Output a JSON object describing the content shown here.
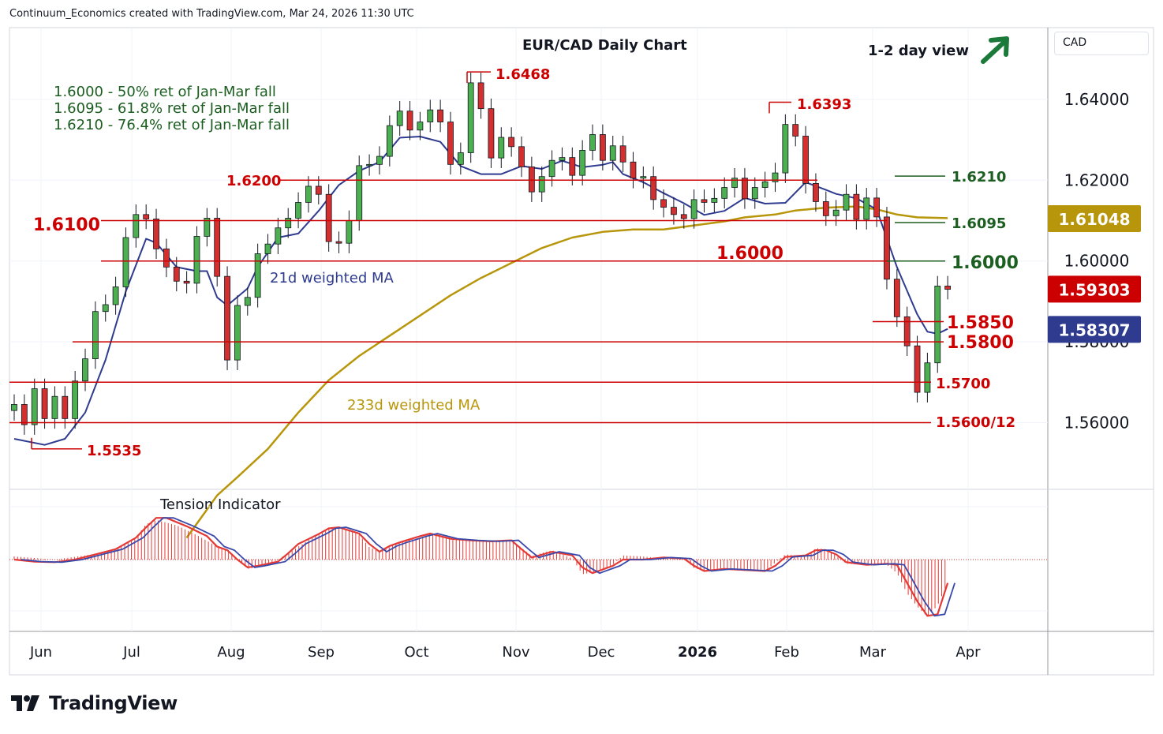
{
  "header": {
    "text": "Continuum_Economics created with TradingView.com, Mar 24, 2026 11:30 UTC"
  },
  "brand": {
    "name": "TradingView"
  },
  "view": {
    "label": "1-2 day view",
    "icon": "arrow-up-right-icon",
    "color": "#1b7a3a"
  },
  "currency": {
    "label": "CAD"
  },
  "chart_data": {
    "type": "candlestick",
    "title": "EUR/CAD Daily Chart",
    "x_tick_labels": [
      "Jun",
      "Jul",
      "Aug",
      "Sep",
      "Oct",
      "Nov",
      "Dec",
      "2026",
      "Feb",
      "Mar",
      "Apr"
    ],
    "y_tick_labels": [
      "1.64000",
      "1.62000",
      "1.60000",
      "1.58000",
      "1.56000"
    ],
    "ylim": [
      1.545,
      1.652
    ],
    "grid": true,
    "price_badges": [
      {
        "value": "1.61048",
        "color": "#b8960b"
      },
      {
        "value": "1.59303",
        "color": "#cc0000"
      },
      {
        "value": "1.58307",
        "color": "#2e3b8f"
      }
    ],
    "fib_notes": [
      "1.6000 - 50% ret of Jan-Mar fall",
      "1.6095 - 61.8% ret of Jan-Mar fall",
      "1.6210 - 76.4% ret of Jan-Mar fall"
    ],
    "levels": [
      {
        "label": "1.6100",
        "value": 1.61,
        "color": "#cc0000",
        "label_side": "left"
      },
      {
        "label": "1.6200",
        "value": 1.62,
        "color": "#cc0000",
        "label_side": "left"
      },
      {
        "label": "1.6000",
        "value": 1.6,
        "color": "#cc0000",
        "label_side": "mid"
      },
      {
        "label": "1.5850",
        "value": 1.585,
        "color": "#cc0000",
        "label_side": "right"
      },
      {
        "label": "1.5800",
        "value": 1.58,
        "color": "#cc0000",
        "label_side": "right"
      },
      {
        "label": "1.5700",
        "value": 1.57,
        "color": "#cc0000",
        "label_side": "right"
      },
      {
        "label": "1.5600/12",
        "value": 1.56,
        "color": "#cc0000",
        "label_side": "right"
      },
      {
        "label": "1.6468",
        "value": 1.6468,
        "color": "#cc0000",
        "label_side": "peak"
      },
      {
        "label": "1.6393",
        "value": 1.6393,
        "color": "#cc0000",
        "label_side": "peak"
      },
      {
        "label": "1.5535",
        "value": 1.5535,
        "color": "#cc0000",
        "label_side": "trough"
      },
      {
        "label": "1.6210",
        "value": 1.621,
        "color": "#1b5e20",
        "label_side": "right"
      },
      {
        "label": "1.6095",
        "value": 1.6095,
        "color": "#1b5e20",
        "label_side": "right"
      },
      {
        "label": "1.6000",
        "value": 1.6,
        "color": "#1b5e20",
        "label_side": "right"
      }
    ],
    "series": [
      {
        "name": "21d weighted MA",
        "color": "#2e3b8f"
      },
      {
        "name": "233d weighted MA",
        "color": "#b8960b"
      }
    ],
    "moving_averages": {
      "ma21": [
        [
          0,
          1.556
        ],
        [
          3,
          1.5545
        ],
        [
          5,
          1.556
        ],
        [
          7,
          1.5625
        ],
        [
          9,
          1.5755
        ],
        [
          11,
          1.5925
        ],
        [
          13,
          1.6055
        ],
        [
          14,
          1.6045
        ],
        [
          16,
          1.5985
        ],
        [
          18,
          1.5975
        ],
        [
          19,
          1.5975
        ],
        [
          20,
          1.591
        ],
        [
          21,
          1.589
        ],
        [
          23,
          1.5932
        ],
        [
          24,
          1.5985
        ],
        [
          26,
          1.6058
        ],
        [
          28,
          1.6068
        ],
        [
          30,
          1.6124
        ],
        [
          32,
          1.6188
        ],
        [
          34,
          1.6223
        ],
        [
          36,
          1.6245
        ],
        [
          38,
          1.6305
        ],
        [
          40,
          1.6308
        ],
        [
          42,
          1.6295
        ],
        [
          44,
          1.6235
        ],
        [
          46,
          1.6215
        ],
        [
          48,
          1.6215
        ],
        [
          50,
          1.6235
        ],
        [
          52,
          1.6228
        ],
        [
          54,
          1.6248
        ],
        [
          56,
          1.6232
        ],
        [
          58,
          1.6238
        ],
        [
          59,
          1.6245
        ],
        [
          60,
          1.6215
        ],
        [
          62,
          1.6195
        ],
        [
          64,
          1.6168
        ],
        [
          66,
          1.6143
        ],
        [
          68,
          1.6114
        ],
        [
          70,
          1.6124
        ],
        [
          72,
          1.6156
        ],
        [
          74,
          1.6142
        ],
        [
          76,
          1.6144
        ],
        [
          78,
          1.6195
        ],
        [
          80,
          1.6176
        ],
        [
          81,
          1.6166
        ],
        [
          83,
          1.6155
        ],
        [
          85,
          1.6128
        ],
        [
          87,
          1.5985
        ],
        [
          89,
          1.5868
        ],
        [
          90,
          1.5825
        ],
        [
          91,
          1.582
        ],
        [
          92,
          1.5832
        ]
      ],
      "ma233": [
        [
          17,
          1.5315
        ],
        [
          20,
          1.542
        ],
        [
          22,
          1.5465
        ],
        [
          25,
          1.5535
        ],
        [
          28,
          1.5625
        ],
        [
          31,
          1.5705
        ],
        [
          34,
          1.5765
        ],
        [
          37,
          1.5815
        ],
        [
          40,
          1.5865
        ],
        [
          43,
          1.5915
        ],
        [
          46,
          1.5958
        ],
        [
          49,
          1.5995
        ],
        [
          52,
          1.6032
        ],
        [
          55,
          1.6058
        ],
        [
          58,
          1.6072
        ],
        [
          61,
          1.6078
        ],
        [
          64,
          1.6078
        ],
        [
          67,
          1.6088
        ],
        [
          70,
          1.6098
        ],
        [
          72,
          1.6108
        ],
        [
          75,
          1.6115
        ],
        [
          77,
          1.6125
        ],
        [
          80,
          1.6132
        ],
        [
          83,
          1.6135
        ],
        [
          85,
          1.6128
        ],
        [
          87,
          1.6115
        ],
        [
          89,
          1.6108
        ],
        [
          92,
          1.6106
        ]
      ]
    },
    "closes": [
      1.5645,
      1.5595,
      1.5684,
      1.561,
      1.5665,
      1.561,
      1.5703,
      1.5758,
      1.5875,
      1.5892,
      1.5936,
      1.6058,
      1.6115,
      1.6104,
      1.603,
      1.5985,
      1.595,
      1.5945,
      1.6061,
      1.6106,
      1.5962,
      1.5755,
      1.589,
      1.591,
      1.6018,
      1.6042,
      1.6082,
      1.6106,
      1.6145,
      1.6185,
      1.6165,
      1.6048,
      1.6044,
      1.61,
      1.6236,
      1.6239,
      1.6259,
      1.6335,
      1.6371,
      1.6324,
      1.6344,
      1.6374,
      1.6344,
      1.6239,
      1.6268,
      1.6441,
      1.6377,
      1.6255,
      1.6306,
      1.6283,
      1.6233,
      1.6171,
      1.6209,
      1.6249,
      1.6256,
      1.6212,
      1.6274,
      1.6313,
      1.6249,
      1.6285,
      1.6245,
      1.6205,
      1.6209,
      1.6152,
      1.6133,
      1.6115,
      1.6105,
      1.6152,
      1.6145,
      1.6155,
      1.6182,
      1.6205,
      1.6154,
      1.6182,
      1.6196,
      1.6218,
      1.6338,
      1.6309,
      1.6192,
      1.6147,
      1.6112,
      1.6126,
      1.6165,
      1.6103,
      1.6156,
      1.6109,
      1.5955,
      1.5862,
      1.579,
      1.5675,
      1.5748,
      1.5938,
      1.593
    ],
    "tension_indicator": {
      "label": "Tension Indicator",
      "histogram": [
        [
          0,
          0.06
        ],
        [
          4,
          0.0
        ],
        [
          7,
          0.08
        ],
        [
          10,
          0.18
        ],
        [
          12,
          0.42
        ],
        [
          13,
          0.68
        ],
        [
          14,
          0.76
        ],
        [
          16,
          0.66
        ],
        [
          18,
          0.47
        ],
        [
          20,
          0.25
        ],
        [
          21,
          0.17
        ],
        [
          22,
          0.02
        ],
        [
          23,
          -0.18
        ],
        [
          25,
          -0.11
        ],
        [
          27,
          0.12
        ],
        [
          28,
          0.25
        ],
        [
          30,
          0.49
        ],
        [
          31,
          0.6
        ],
        [
          32,
          0.63
        ],
        [
          34,
          0.48
        ],
        [
          35,
          0.24
        ],
        [
          36,
          0.15
        ],
        [
          38,
          0.33
        ],
        [
          40,
          0.42
        ],
        [
          41,
          0.49
        ],
        [
          43,
          0.42
        ],
        [
          45,
          0.37
        ],
        [
          47,
          0.35
        ],
        [
          49,
          0.38
        ],
        [
          51,
          0.07
        ],
        [
          53,
          0.18
        ],
        [
          55,
          0.02
        ],
        [
          56,
          -0.28
        ],
        [
          57,
          -0.25
        ],
        [
          59,
          -0.1
        ],
        [
          60,
          0.08
        ],
        [
          62,
          0.06
        ],
        [
          64,
          0.02
        ],
        [
          66,
          0.02
        ],
        [
          67,
          -0.16
        ],
        [
          68,
          -0.22
        ],
        [
          70,
          -0.18
        ],
        [
          72,
          -0.22
        ],
        [
          74,
          -0.22
        ],
        [
          76,
          0.1
        ],
        [
          78,
          0.06
        ],
        [
          79,
          0.22
        ],
        [
          80,
          0.2
        ],
        [
          81,
          0.08
        ],
        [
          82,
          -0.08
        ],
        [
          84,
          -0.1
        ],
        [
          86,
          -0.1
        ],
        [
          87,
          -0.26
        ],
        [
          88,
          -0.65
        ],
        [
          89,
          -0.9
        ],
        [
          90,
          -1.1
        ],
        [
          91,
          -0.88
        ],
        [
          92,
          -0.45
        ]
      ],
      "lines": [
        [
          0,
          0.0
        ],
        [
          2,
          -0.04
        ],
        [
          4,
          -0.05
        ],
        [
          6,
          0.0
        ],
        [
          8,
          0.1
        ],
        [
          10,
          0.2
        ],
        [
          12,
          0.42
        ],
        [
          13,
          0.62
        ],
        [
          14,
          0.8
        ],
        [
          15,
          0.8
        ],
        [
          17,
          0.64
        ],
        [
          19,
          0.45
        ],
        [
          20,
          0.25
        ],
        [
          21,
          0.18
        ],
        [
          22,
          0.0
        ],
        [
          23,
          -0.15
        ],
        [
          24,
          -0.12
        ],
        [
          26,
          -0.04
        ],
        [
          27,
          0.12
        ],
        [
          28,
          0.3
        ],
        [
          30,
          0.49
        ],
        [
          31,
          0.6
        ],
        [
          32,
          0.62
        ],
        [
          34,
          0.5
        ],
        [
          35,
          0.3
        ],
        [
          36,
          0.15
        ],
        [
          37,
          0.26
        ],
        [
          38,
          0.33
        ],
        [
          40,
          0.45
        ],
        [
          41,
          0.5
        ],
        [
          43,
          0.4
        ],
        [
          45,
          0.37
        ],
        [
          47,
          0.35
        ],
        [
          49,
          0.37
        ],
        [
          50,
          0.2
        ],
        [
          51,
          0.04
        ],
        [
          53,
          0.15
        ],
        [
          55,
          0.08
        ],
        [
          56,
          -0.15
        ],
        [
          57,
          -0.26
        ],
        [
          59,
          -0.12
        ],
        [
          60,
          0.0
        ],
        [
          62,
          0.0
        ],
        [
          64,
          0.04
        ],
        [
          66,
          0.02
        ],
        [
          67,
          -0.12
        ],
        [
          68,
          -0.22
        ],
        [
          70,
          -0.18
        ],
        [
          72,
          -0.2
        ],
        [
          74,
          -0.22
        ],
        [
          75,
          -0.12
        ],
        [
          76,
          0.05
        ],
        [
          78,
          0.08
        ],
        [
          79,
          0.18
        ],
        [
          80,
          0.18
        ],
        [
          81,
          0.1
        ],
        [
          82,
          -0.05
        ],
        [
          84,
          -0.1
        ],
        [
          86,
          -0.08
        ],
        [
          87,
          -0.1
        ],
        [
          88,
          -0.45
        ],
        [
          89,
          -0.8
        ],
        [
          90,
          -1.08
        ],
        [
          91,
          -1.05
        ],
        [
          92,
          -0.45
        ]
      ]
    }
  }
}
